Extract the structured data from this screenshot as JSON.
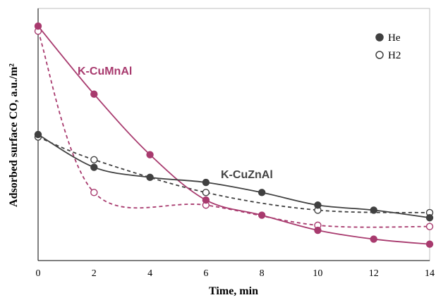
{
  "chart_data": {
    "type": "line",
    "xlabel": "Time, min",
    "ylabel": "Adsorbed surface CO, a.u./m²",
    "xlim": [
      0,
      14
    ],
    "ylim": [
      0,
      1
    ],
    "x_ticks": [
      "0",
      "2",
      "4",
      "6",
      "8",
      "10",
      "12",
      "14"
    ],
    "legend": {
      "position": "top-right",
      "entries": [
        {
          "label": "He",
          "marker": "filled-circle"
        },
        {
          "label": "H2",
          "marker": "open-circle"
        }
      ]
    },
    "annotations": [
      {
        "text": "K-CuMnAl",
        "color": "#a83a6e"
      },
      {
        "text": "K-CuZnAl",
        "color": "#444444"
      }
    ],
    "colors": {
      "cumnal": "#a83a6e",
      "cuznal": "#404040"
    },
    "series": [
      {
        "catalyst": "K-CuMnAl",
        "legend": "He",
        "line": "solid",
        "color": "#a83a6e",
        "x": [
          0,
          2,
          4,
          6,
          8,
          10,
          12,
          14
        ],
        "y": [
          0.93,
          0.66,
          0.42,
          0.24,
          0.18,
          0.12,
          0.085,
          0.065
        ]
      },
      {
        "catalyst": "K-CuMnAl",
        "legend": "H2",
        "line": "dashed",
        "color": "#a83a6e",
        "x": [
          0,
          2,
          6,
          10,
          14
        ],
        "y": [
          0.91,
          0.27,
          0.22,
          0.14,
          0.135
        ]
      },
      {
        "catalyst": "K-CuZnAl",
        "legend": "He",
        "line": "solid",
        "color": "#404040",
        "x": [
          0,
          2,
          4,
          6,
          8,
          10,
          12,
          14
        ],
        "y": [
          0.5,
          0.37,
          0.33,
          0.31,
          0.27,
          0.22,
          0.2,
          0.17
        ]
      },
      {
        "catalyst": "K-CuZnAl",
        "legend": "H2",
        "line": "dashed",
        "color": "#404040",
        "x": [
          0,
          2,
          6,
          10,
          14
        ],
        "y": [
          0.49,
          0.4,
          0.27,
          0.2,
          0.19
        ]
      }
    ]
  }
}
